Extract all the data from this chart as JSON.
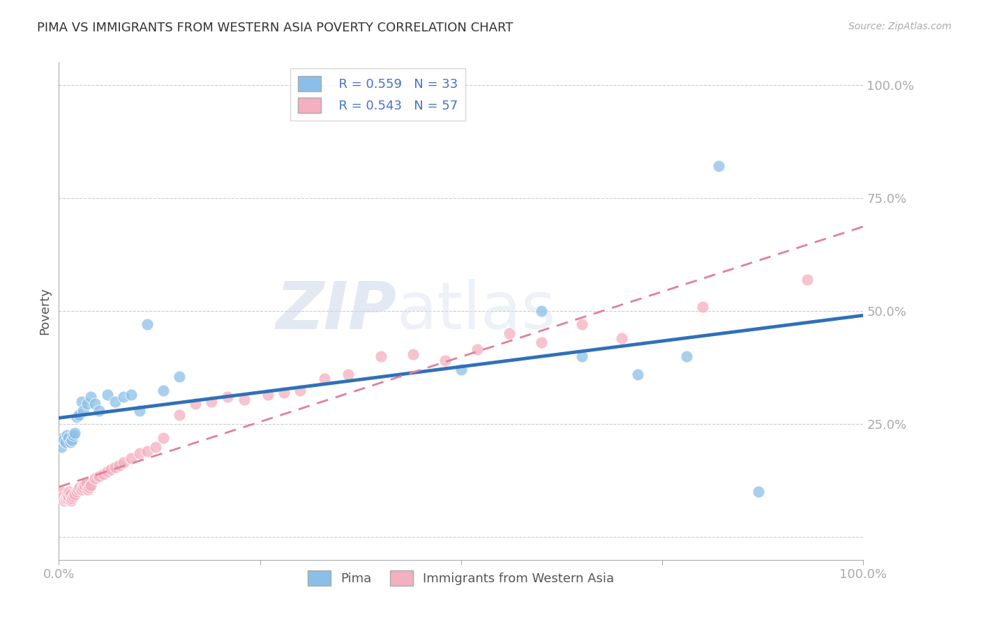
{
  "title": "PIMA VS IMMIGRANTS FROM WESTERN ASIA POVERTY CORRELATION CHART",
  "source": "Source: ZipAtlas.com",
  "ylabel": "Poverty",
  "watermark_zip": "ZIP",
  "watermark_atlas": "atlas",
  "legend_r1": "R = 0.559",
  "legend_n1": "N = 33",
  "legend_r2": "R = 0.543",
  "legend_n2": "N = 57",
  "pima_color": "#8bbfe8",
  "immigrant_color": "#f4afc0",
  "pima_line_color": "#3070b8",
  "immigrant_line_color": "#e08098",
  "background_color": "#ffffff",
  "grid_color": "#cccccc",
  "xlim": [
    0.0,
    1.0
  ],
  "ylim": [
    -0.05,
    1.05
  ],
  "pima_x": [
    0.003,
    0.005,
    0.006,
    0.008,
    0.01,
    0.012,
    0.014,
    0.016,
    0.018,
    0.02,
    0.022,
    0.025,
    0.028,
    0.03,
    0.035,
    0.04,
    0.045,
    0.05,
    0.06,
    0.07,
    0.08,
    0.09,
    0.1,
    0.11,
    0.13,
    0.15,
    0.5,
    0.6,
    0.65,
    0.72,
    0.78,
    0.82,
    0.87
  ],
  "pima_y": [
    0.2,
    0.22,
    0.215,
    0.21,
    0.225,
    0.22,
    0.21,
    0.215,
    0.225,
    0.23,
    0.265,
    0.27,
    0.3,
    0.28,
    0.295,
    0.31,
    0.295,
    0.28,
    0.315,
    0.3,
    0.31,
    0.315,
    0.28,
    0.47,
    0.325,
    0.355,
    0.37,
    0.5,
    0.4,
    0.36,
    0.4,
    0.82,
    0.1
  ],
  "immigrant_x": [
    0.003,
    0.005,
    0.007,
    0.008,
    0.009,
    0.01,
    0.011,
    0.012,
    0.013,
    0.014,
    0.015,
    0.016,
    0.018,
    0.02,
    0.022,
    0.024,
    0.026,
    0.028,
    0.03,
    0.032,
    0.034,
    0.036,
    0.038,
    0.04,
    0.045,
    0.05,
    0.055,
    0.06,
    0.065,
    0.07,
    0.075,
    0.08,
    0.09,
    0.1,
    0.11,
    0.12,
    0.13,
    0.15,
    0.17,
    0.19,
    0.21,
    0.23,
    0.26,
    0.28,
    0.3,
    0.33,
    0.36,
    0.4,
    0.44,
    0.48,
    0.52,
    0.56,
    0.6,
    0.65,
    0.7,
    0.8,
    0.93
  ],
  "immigrant_y": [
    0.1,
    0.09,
    0.08,
    0.085,
    0.09,
    0.095,
    0.085,
    0.09,
    0.1,
    0.095,
    0.08,
    0.085,
    0.09,
    0.095,
    0.1,
    0.105,
    0.11,
    0.105,
    0.11,
    0.115,
    0.12,
    0.105,
    0.11,
    0.115,
    0.13,
    0.135,
    0.14,
    0.145,
    0.15,
    0.155,
    0.16,
    0.165,
    0.175,
    0.185,
    0.19,
    0.2,
    0.22,
    0.27,
    0.295,
    0.3,
    0.31,
    0.305,
    0.315,
    0.32,
    0.325,
    0.35,
    0.36,
    0.4,
    0.405,
    0.39,
    0.415,
    0.45,
    0.43,
    0.47,
    0.44,
    0.51,
    0.57
  ]
}
